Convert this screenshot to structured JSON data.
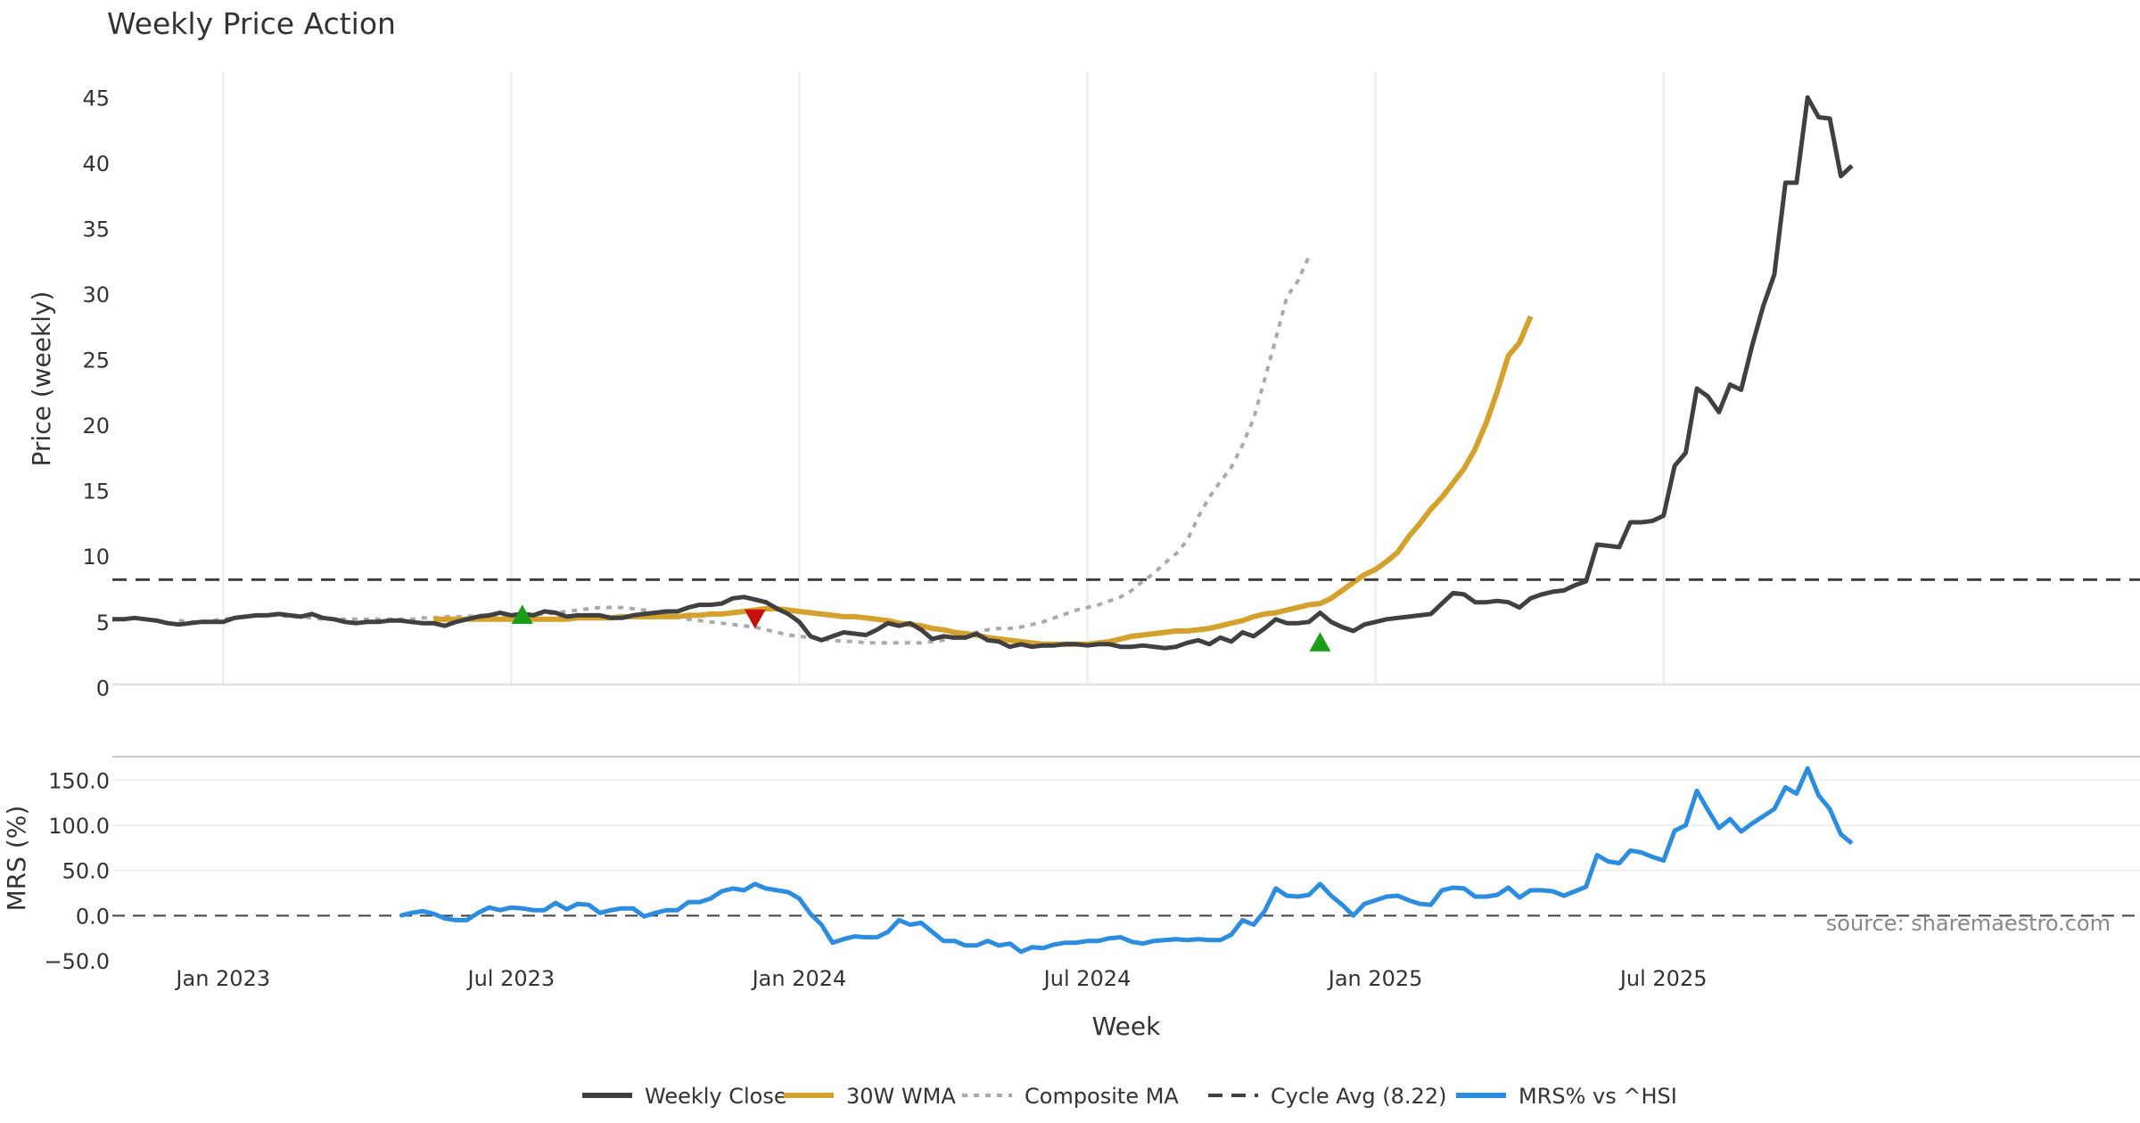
{
  "chart_data": {
    "type": "line",
    "title": "Weekly Price Action",
    "xlabel": "Week",
    "x_ticks": [
      "Jan 2023",
      "Jul 2023",
      "Jan 2024",
      "Jul 2024",
      "Jan 2025",
      "Jul 2025"
    ],
    "x_range_weeks": [
      -10,
      173
    ],
    "price_panel": {
      "ylabel": "Price (weekly)",
      "ylim": [
        -1,
        47
      ],
      "yticks": [
        "0",
        "5",
        "10",
        "15",
        "20",
        "25",
        "30",
        "35",
        "40",
        "45"
      ],
      "cycle_avg": 8.22,
      "series": [
        {
          "name": "Weekly Close",
          "color": "#404040",
          "start_week": -10,
          "values": [
            5.2,
            5.2,
            5.3,
            5.2,
            5.1,
            4.9,
            4.8,
            4.9,
            5.0,
            5.0,
            5.0,
            5.3,
            5.4,
            5.5,
            5.5,
            5.6,
            5.5,
            5.4,
            5.6,
            5.3,
            5.2,
            5.0,
            4.9,
            5.0,
            5.0,
            5.1,
            5.1,
            5.0,
            4.9,
            4.9,
            4.7,
            5.0,
            5.2,
            5.4,
            5.5,
            5.7,
            5.5,
            5.6,
            5.5,
            5.8,
            5.7,
            5.4,
            5.5,
            5.5,
            5.5,
            5.3,
            5.3,
            5.5,
            5.6,
            5.7,
            5.8,
            5.8,
            6.1,
            6.3,
            6.3,
            6.4,
            6.8,
            6.9,
            6.7,
            6.5,
            6.0,
            5.6,
            5.0,
            3.9,
            3.6,
            3.9,
            4.2,
            4.1,
            4.0,
            4.4,
            4.9,
            4.7,
            4.9,
            4.4,
            3.7,
            3.9,
            3.8,
            3.8,
            4.1,
            3.6,
            3.5,
            3.1,
            3.3,
            3.1,
            3.2,
            3.2,
            3.3,
            3.3,
            3.2,
            3.3,
            3.3,
            3.1,
            3.1,
            3.2,
            3.1,
            3.0,
            3.1,
            3.4,
            3.6,
            3.3,
            3.8,
            3.5,
            4.2,
            3.9,
            4.5,
            5.2,
            4.9,
            4.9,
            5.0,
            5.7,
            5.0,
            4.6,
            4.3,
            4.8,
            5.0,
            5.2,
            5.3,
            5.4,
            5.5,
            5.6,
            6.4,
            7.2,
            7.1,
            6.5,
            6.5,
            6.6,
            6.5,
            6.1,
            6.8,
            7.1,
            7.3,
            7.4,
            7.8,
            8.1,
            10.9,
            10.8,
            10.7,
            12.6,
            12.6,
            12.7,
            13.1,
            16.9,
            17.9,
            22.8,
            22.2,
            21.0,
            23.1,
            22.7,
            26.1,
            29.1,
            31.5,
            38.5,
            38.5,
            45.0,
            43.5,
            43.4,
            39.0,
            39.8
          ]
        },
        {
          "name": "30W WMA",
          "color": "#d4a22c",
          "start_week": 19,
          "values": [
            5.2,
            5.2,
            5.2,
            5.2,
            5.2,
            5.2,
            5.2,
            5.2,
            5.2,
            5.2,
            5.2,
            5.2,
            5.2,
            5.3,
            5.3,
            5.3,
            5.3,
            5.4,
            5.4,
            5.4,
            5.4,
            5.4,
            5.4,
            5.5,
            5.5,
            5.6,
            5.6,
            5.7,
            5.8,
            5.9,
            6.0,
            6.0,
            5.9,
            5.8,
            5.7,
            5.6,
            5.5,
            5.4,
            5.4,
            5.3,
            5.2,
            5.1,
            4.9,
            4.8,
            4.7,
            4.5,
            4.4,
            4.2,
            4.1,
            4.0,
            3.8,
            3.7,
            3.6,
            3.5,
            3.4,
            3.3,
            3.3,
            3.3,
            3.3,
            3.3,
            3.4,
            3.5,
            3.7,
            3.9,
            4.0,
            4.1,
            4.2,
            4.3,
            4.3,
            4.4,
            4.5,
            4.7,
            4.9,
            5.1,
            5.4,
            5.6,
            5.7,
            5.9,
            6.1,
            6.3,
            6.4,
            6.8,
            7.4,
            8.0,
            8.6,
            9.0,
            9.6,
            10.3,
            11.5,
            12.5,
            13.6,
            14.5,
            15.6,
            16.7,
            18.2,
            20.2,
            22.6,
            25.3,
            26.3,
            28.3
          ]
        },
        {
          "name": "Composite MA",
          "color": "#aaaaaa",
          "start_week": -4,
          "values": [
            5.1,
            5.0,
            5.0,
            5.1,
            5.2,
            5.3,
            5.4,
            5.5,
            5.5,
            5.5,
            5.4,
            5.4,
            5.3,
            5.2,
            5.2,
            5.2,
            5.2,
            5.2,
            5.2,
            5.2,
            5.2,
            5.2,
            5.3,
            5.3,
            5.4,
            5.4,
            5.4,
            5.5,
            5.5,
            5.5,
            5.5,
            5.6,
            5.6,
            5.6,
            5.7,
            5.8,
            5.9,
            6.0,
            6.1,
            6.1,
            6.1,
            6.0,
            5.9,
            5.7,
            5.5,
            5.4,
            5.2,
            5.1,
            5.0,
            4.9,
            4.8,
            4.7,
            4.6,
            4.4,
            4.2,
            4.0,
            3.9,
            3.8,
            3.7,
            3.6,
            3.5,
            3.5,
            3.4,
            3.4,
            3.4,
            3.4,
            3.4,
            3.4,
            3.5,
            3.6,
            3.8,
            4.0,
            4.2,
            4.4,
            4.5,
            4.5,
            4.6,
            4.8,
            5.0,
            5.3,
            5.6,
            5.9,
            6.1,
            6.3,
            6.6,
            6.9,
            7.4,
            8.1,
            8.7,
            9.5,
            10.2,
            11.2,
            13.0,
            14.5,
            15.7,
            16.8,
            18.5,
            20.5,
            23.5,
            26.6,
            29.8,
            31.0,
            32.9
          ]
        }
      ],
      "markers": [
        {
          "type": "buy",
          "week": 27,
          "value": 5.5,
          "color": "#1a9e1a"
        },
        {
          "type": "sell",
          "week": 48,
          "value": 5.3,
          "color": "#c81010"
        },
        {
          "type": "buy",
          "week": 99,
          "value": 3.4,
          "color": "#1a9e1a"
        }
      ]
    },
    "mrs_panel": {
      "ylabel": "MRS (%)",
      "ylim": [
        -50,
        170
      ],
      "yticks": [
        "150.0",
        "100.0",
        "50.0",
        "0.0",
        "−50.0"
      ],
      "series": [
        {
          "name": "MRS% vs ^HSI",
          "color": "#2b8ce0",
          "start_week": 16,
          "values": [
            0,
            3,
            5,
            2,
            -3,
            -5,
            -5,
            3,
            9,
            6,
            9,
            8,
            6,
            6,
            14,
            7,
            13,
            12,
            3,
            6,
            8,
            8,
            -1,
            3,
            6,
            6,
            15,
            15,
            19,
            27,
            30,
            28,
            35,
            30,
            28,
            26,
            19,
            2,
            -10,
            -30,
            -26,
            -23,
            -24,
            -24,
            -18,
            -5,
            -10,
            -8,
            -18,
            -28,
            -28,
            -33,
            -33,
            -28,
            -33,
            -31,
            -40,
            -35,
            -36,
            -32,
            -30,
            -30,
            -28,
            -28,
            -25,
            -24,
            -29,
            -31,
            -28,
            -27,
            -26,
            -27,
            -26,
            -27,
            -27,
            -21,
            -5,
            -10,
            5,
            30,
            22,
            21,
            23,
            35,
            22,
            12,
            0,
            13,
            17,
            21,
            22,
            17,
            13,
            12,
            28,
            31,
            30,
            21,
            21,
            23,
            31,
            20,
            28,
            28,
            27,
            22,
            27,
            32,
            67,
            60,
            58,
            72,
            70,
            65,
            61,
            94,
            100,
            138,
            117,
            97,
            107,
            93,
            102,
            110,
            118,
            142,
            135,
            163,
            133,
            118,
            90,
            80
          ]
        }
      ]
    },
    "legend": [
      {
        "label": "Weekly Close",
        "style": "solid",
        "color": "#404040"
      },
      {
        "label": "30W WMA",
        "style": "solid",
        "color": "#d4a22c"
      },
      {
        "label": "Composite MA",
        "style": "dotted",
        "color": "#aaaaaa"
      },
      {
        "label": "Cycle Avg (8.22)",
        "style": "dashed",
        "color": "#404040"
      },
      {
        "label": "MRS% vs ^HSI",
        "style": "solid",
        "color": "#2b8ce0"
      }
    ],
    "legend_position": "bottom-center",
    "source_note": "source: sharemaestro.com"
  }
}
